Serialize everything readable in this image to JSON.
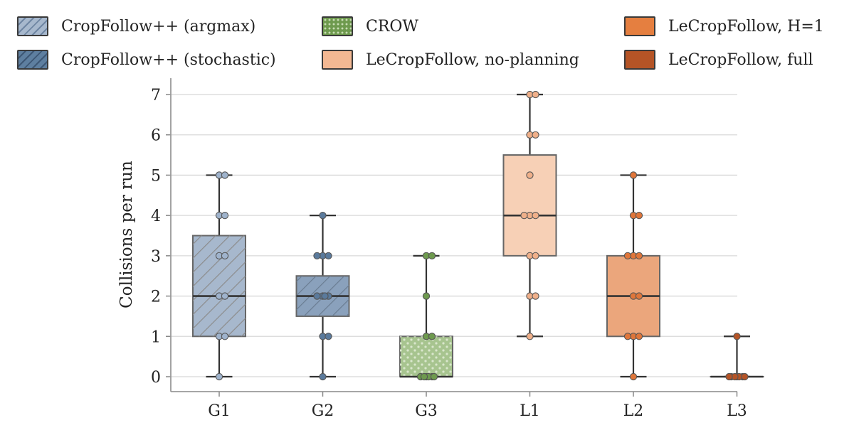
{
  "chart_data": {
    "type": "box",
    "categories": [
      "G1",
      "G2",
      "G3",
      "L1",
      "L2",
      "L3"
    ],
    "ylabel": "Collisions per run",
    "xlabel": "",
    "ylim": [
      -0.4,
      7.4
    ],
    "yticks": [
      0,
      1,
      2,
      3,
      4,
      5,
      6,
      7
    ],
    "grid": "horizontal",
    "legend_position": "top",
    "legend": [
      {
        "label": "CropFollow++ (argmax)",
        "color": "#a7b8cd",
        "pattern": "hatch"
      },
      {
        "label": "CropFollow++ (stochastic)",
        "color": "#5e7fa0",
        "pattern": "hatch"
      },
      {
        "label": "CROW",
        "color": "#6e9a4e",
        "pattern": "dots"
      },
      {
        "label": "LeCropFollow, no-planning",
        "color": "#f3b893",
        "pattern": "none"
      },
      {
        "label": "LeCropFollow, H=1",
        "color": "#e57f40",
        "pattern": "none"
      },
      {
        "label": "LeCropFollow, full",
        "color": "#b55426",
        "pattern": "none"
      }
    ],
    "series": [
      {
        "category": "G1",
        "min": 0,
        "q1": 1,
        "median": 2,
        "q3": 3.5,
        "max": 5,
        "fill": "#a7b8cd",
        "point_color": "#9fb3cc",
        "pattern": "hatch",
        "points": [
          5,
          5,
          4,
          4,
          3,
          3,
          2,
          2,
          1,
          1,
          0
        ]
      },
      {
        "category": "G2",
        "min": 0,
        "q1": 1.5,
        "median": 2,
        "q3": 2.5,
        "max": 4,
        "fill": "#8aa1bc",
        "point_color": "#5a7a9c",
        "pattern": "hatch",
        "points": [
          4,
          3,
          3,
          3,
          2,
          2,
          2,
          2,
          1,
          1,
          0
        ]
      },
      {
        "category": "G3",
        "min": 0,
        "q1": 0,
        "median": 0,
        "q3": 1,
        "max": 3,
        "fill": "#a7c48f",
        "point_color": "#6e9a4e",
        "pattern": "dots",
        "points": [
          3,
          3,
          2,
          1,
          1,
          0,
          0,
          0,
          0,
          0,
          0
        ]
      },
      {
        "category": "L1",
        "min": 1,
        "q1": 3,
        "median": 4,
        "q3": 5.5,
        "max": 7,
        "fill": "#f7d0b6",
        "point_color": "#f0b08a",
        "pattern": "none",
        "points": [
          7,
          7,
          6,
          6,
          5,
          4,
          4,
          4,
          3,
          3,
          2,
          2,
          1
        ]
      },
      {
        "category": "L2",
        "min": 0,
        "q1": 1,
        "median": 2,
        "q3": 3,
        "max": 5,
        "fill": "#eba67c",
        "point_color": "#e0763a",
        "pattern": "none",
        "points": [
          5,
          4,
          4,
          3,
          3,
          3,
          2,
          2,
          1,
          1,
          1,
          0
        ]
      },
      {
        "category": "L3",
        "min": 0,
        "q1": 0,
        "median": 0,
        "q3": 0,
        "max": 1,
        "fill": "#c7683a",
        "point_color": "#b55426",
        "pattern": "none",
        "points": [
          1,
          0,
          0,
          0,
          0,
          0,
          0,
          0
        ]
      }
    ]
  }
}
